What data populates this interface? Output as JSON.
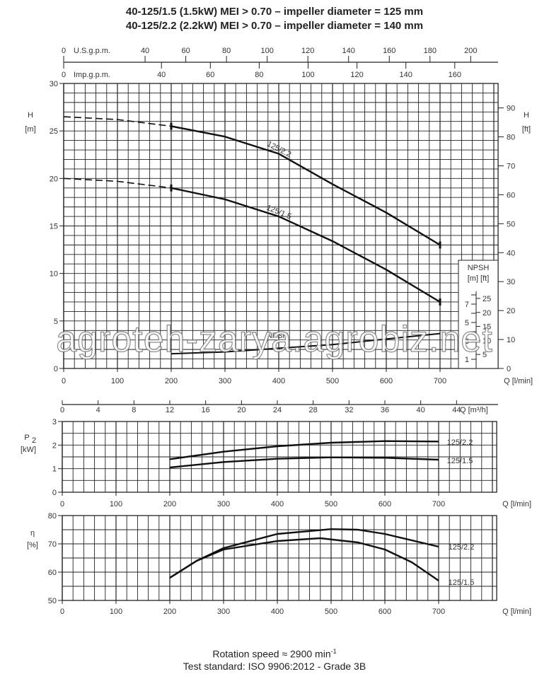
{
  "title_lines": [
    "40-125/1.5 (1.5kW) MEI > 0.70 – impeller diameter = 125 mm",
    "40-125/2.2 (2.2kW) MEI > 0.70 – impeller diameter = 140 mm"
  ],
  "footer": {
    "rotation": "Rotation speed ≈ 2900 min",
    "rotation_sup": "-1",
    "standard": "Test standard: ISO 9906:2012 - Grade 3B"
  },
  "watermark": "agroteh-zarya.agrobiz.net",
  "chart_data": [
    {
      "type": "line",
      "id": "head",
      "ylabel": "H",
      "yunit": "[m]",
      "y2label": "H",
      "y2unit": "[ft]",
      "xlabel": "Q [l/min]",
      "xlim": [
        0,
        800
      ],
      "ylim": [
        0,
        30
      ],
      "xticks": [
        0,
        100,
        200,
        300,
        400,
        500,
        600,
        700
      ],
      "yticks": [
        0,
        5,
        10,
        15,
        20,
        25,
        30
      ],
      "y2ticks": [
        0,
        10,
        20,
        30,
        40,
        50,
        60,
        70,
        80,
        90
      ],
      "top_axes": {
        "us_label": "U.S.g.p.m.",
        "us_ticks": [
          0,
          40,
          60,
          80,
          100,
          120,
          140,
          160,
          180,
          200
        ],
        "imp_label": "Imp.g.p.m.",
        "imp_ticks": [
          0,
          40,
          60,
          80,
          100,
          120,
          140,
          160
        ]
      },
      "grid": true,
      "series": [
        {
          "name": "125/2.2",
          "dashed_until": 200,
          "x": [
            0,
            100,
            200,
            300,
            400,
            500,
            600,
            700
          ],
          "y": [
            26.5,
            26.2,
            25.5,
            24.4,
            22.6,
            19.4,
            16.4,
            13.0
          ]
        },
        {
          "name": "125/1.5",
          "dashed_until": 200,
          "x": [
            0,
            100,
            200,
            300,
            400,
            500,
            600,
            700
          ],
          "y": [
            20.0,
            19.7,
            19.0,
            17.8,
            16.0,
            13.4,
            10.4,
            7.0
          ]
        }
      ],
      "npsh": {
        "label": "NPSH",
        "units": "[m]  [ft]",
        "m_ticks": [
          1,
          3,
          5,
          7
        ],
        "ft_ticks": [
          5,
          10,
          15,
          20,
          25
        ],
        "x": [
          200,
          300,
          400,
          500,
          600,
          700
        ],
        "y": [
          1.6,
          1.8,
          2.2,
          2.6,
          3.2,
          3.8
        ]
      }
    },
    {
      "type": "line",
      "id": "power",
      "ylabel": "P",
      "ylabel_sub": "2",
      "yunit": "[kW]",
      "xlabel": "Q [l/min]",
      "x2label": "Q [m³/h]",
      "x2ticks": [
        0,
        4,
        8,
        12,
        16,
        20,
        24,
        28,
        32,
        36,
        40,
        44
      ],
      "xlim": [
        0,
        800
      ],
      "ylim": [
        0,
        3
      ],
      "xticks": [
        0,
        100,
        200,
        300,
        400,
        500,
        600,
        700
      ],
      "yticks": [
        0,
        1,
        2,
        3
      ],
      "grid": true,
      "series": [
        {
          "name": "125/2.2",
          "x": [
            200,
            300,
            400,
            500,
            600,
            700
          ],
          "y": [
            1.4,
            1.72,
            1.95,
            2.1,
            2.17,
            2.15
          ]
        },
        {
          "name": "125/1.5",
          "x": [
            200,
            300,
            400,
            500,
            600,
            700
          ],
          "y": [
            1.05,
            1.28,
            1.42,
            1.48,
            1.46,
            1.38
          ]
        }
      ]
    },
    {
      "type": "line",
      "id": "efficiency",
      "ylabel": "η",
      "yunit": "[%]",
      "xlabel": "Q [l/min]",
      "xlim": [
        0,
        800
      ],
      "ylim": [
        50,
        80
      ],
      "xticks": [
        0,
        100,
        200,
        300,
        400,
        500,
        600,
        700
      ],
      "yticks": [
        50,
        60,
        70,
        80
      ],
      "grid": true,
      "series": [
        {
          "name": "125/2.2",
          "x": [
            200,
            250,
            300,
            400,
            500,
            550,
            600,
            700
          ],
          "y": [
            58,
            64,
            68.5,
            73.5,
            75.2,
            75,
            73.5,
            69
          ]
        },
        {
          "name": "125/1.5",
          "x": [
            200,
            250,
            300,
            400,
            480,
            550,
            600,
            650,
            700
          ],
          "y": [
            58,
            64,
            68,
            71,
            72,
            70.5,
            68,
            63.5,
            57
          ]
        }
      ]
    }
  ]
}
